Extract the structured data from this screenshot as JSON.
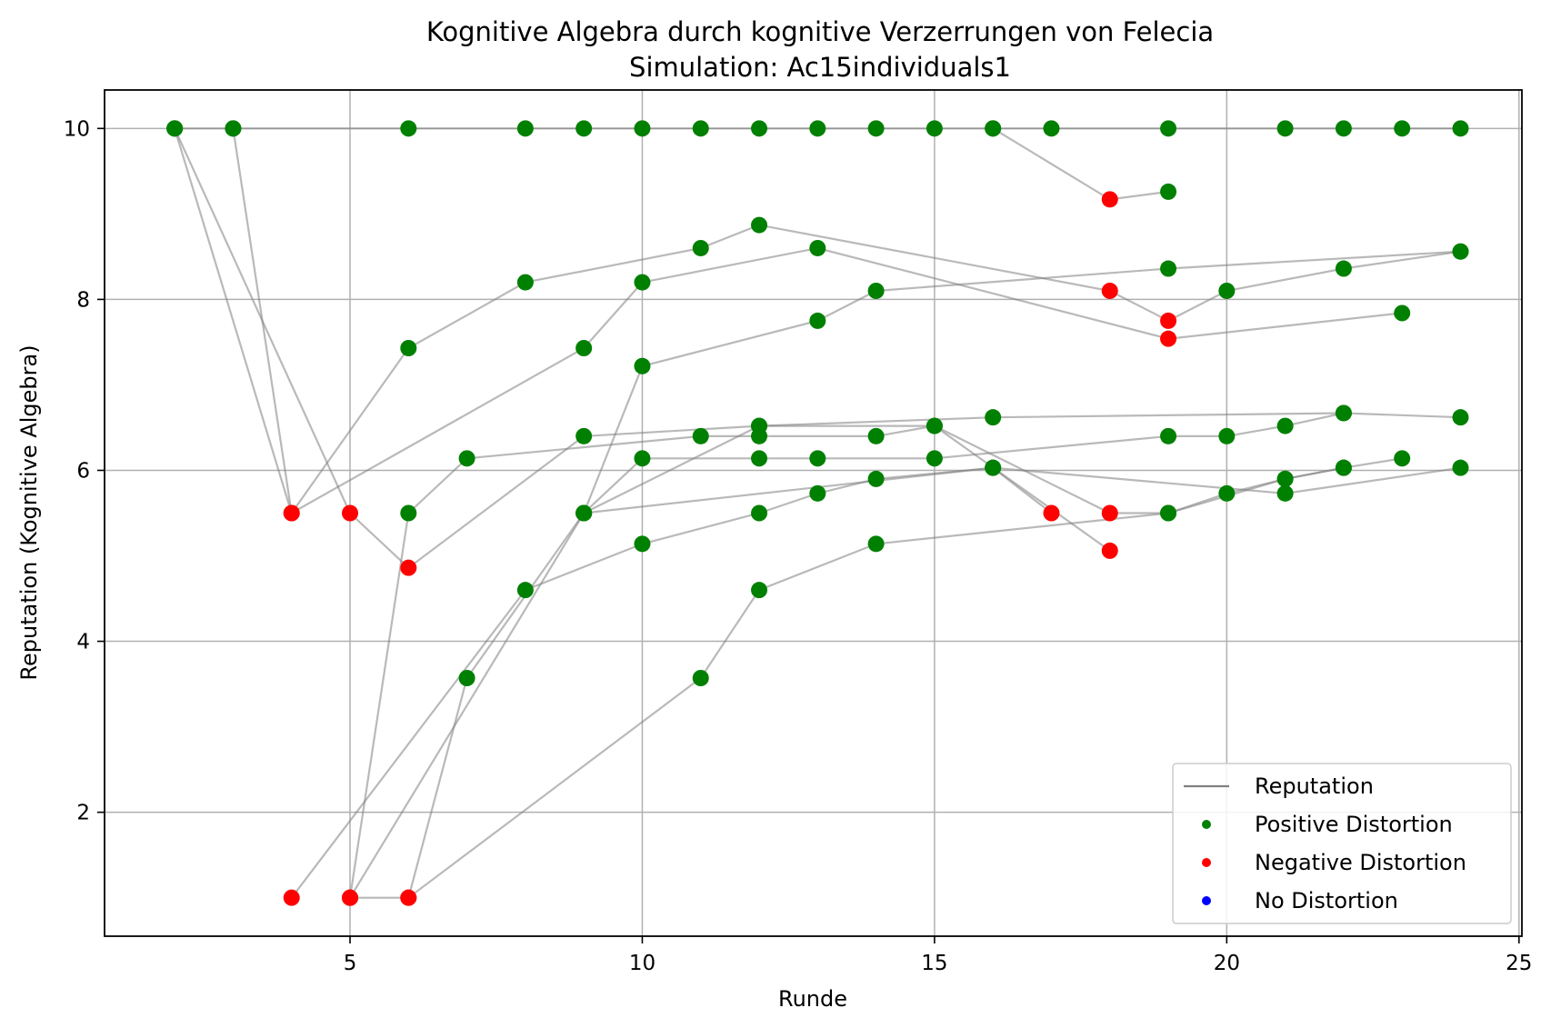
{
  "chart_data": {
    "type": "scatter",
    "title": "Kognitive Algebra durch kognitive Verzerrungen von Felecia",
    "subtitle": "Simulation: Ac15individuals1",
    "xlabel": "Runde",
    "ylabel": "Reputation (Kognitive Algebra)",
    "xlim": [
      0.8,
      25.05
    ],
    "ylim": [
      0.55,
      10.45
    ],
    "xticks": [
      5,
      10,
      15,
      20,
      25
    ],
    "yticks": [
      2,
      4,
      6,
      8,
      10
    ],
    "grid": true,
    "legend_position": "lower-right",
    "legend": [
      {
        "label": "Reputation",
        "kind": "line",
        "color": "#808080"
      },
      {
        "label": "Positive Distortion",
        "kind": "marker",
        "color": "#008000"
      },
      {
        "label": "Negative Distortion",
        "kind": "marker",
        "color": "#ff0000"
      },
      {
        "label": "No Distortion",
        "kind": "marker",
        "color": "#0000ff"
      }
    ],
    "colors": {
      "positive": "#008000",
      "negative": "#ff0000",
      "none": "#0000ff",
      "line": "#808080"
    },
    "series": [
      {
        "points": [
          [
            2,
            10
          ],
          [
            3,
            10
          ],
          [
            6,
            10
          ],
          [
            8,
            10
          ],
          [
            9,
            10
          ],
          [
            10,
            10
          ],
          [
            11,
            10
          ],
          [
            12,
            10
          ],
          [
            13,
            10
          ],
          [
            14,
            10
          ],
          [
            15,
            10
          ],
          [
            16,
            10
          ],
          [
            17,
            10
          ],
          [
            19,
            10
          ],
          [
            21,
            10
          ],
          [
            22,
            10
          ],
          [
            23,
            10
          ],
          [
            24,
            10
          ]
        ],
        "distortion": [
          "p",
          "p",
          "p",
          "p",
          "p",
          "p",
          "p",
          "p",
          "p",
          "p",
          "p",
          "p",
          "p",
          "p",
          "p",
          "p",
          "p",
          "p"
        ]
      },
      {
        "points": [
          [
            2,
            10
          ],
          [
            4,
            5.5
          ],
          [
            6,
            7.43
          ],
          [
            8,
            8.2
          ],
          [
            11,
            8.6
          ],
          [
            12,
            8.87
          ],
          [
            18,
            8.1
          ],
          [
            19,
            7.75
          ],
          [
            20,
            8.1
          ],
          [
            22,
            8.36
          ],
          [
            24,
            8.56
          ]
        ],
        "distortion": [
          "p",
          "n",
          "p",
          "p",
          "p",
          "p",
          "n",
          "n",
          "p",
          "p",
          "p"
        ]
      },
      {
        "points": [
          [
            2,
            10
          ],
          [
            5,
            5.5
          ],
          [
            6,
            4.86
          ],
          [
            9,
            6.4
          ],
          [
            12,
            6.52
          ],
          [
            15,
            6.52
          ],
          [
            18,
            5.5
          ],
          [
            19,
            5.5
          ],
          [
            21,
            5.9
          ],
          [
            22,
            6.03
          ],
          [
            23,
            6.14
          ]
        ],
        "distortion": [
          "p",
          "n",
          "n",
          "p",
          "p",
          "p",
          "n",
          "p",
          "p",
          "p",
          "p"
        ]
      },
      {
        "points": [
          [
            3,
            10
          ],
          [
            4,
            5.5
          ],
          [
            9,
            7.43
          ],
          [
            10,
            8.2
          ],
          [
            13,
            8.6
          ],
          [
            19,
            7.54
          ],
          [
            23,
            7.84
          ]
        ],
        "distortion": [
          "p",
          "n",
          "p",
          "p",
          "p",
          "n",
          "p"
        ]
      },
      {
        "points": [
          [
            4,
            1
          ],
          [
            8,
            4.6
          ],
          [
            10,
            5.14
          ],
          [
            12,
            5.5
          ],
          [
            13,
            5.73
          ],
          [
            14,
            5.9
          ],
          [
            16,
            6.03
          ],
          [
            17,
            5.5
          ]
        ],
        "distortion": [
          "n",
          "p",
          "p",
          "p",
          "p",
          "p",
          "p",
          "n"
        ]
      },
      {
        "points": [
          [
            5,
            1
          ],
          [
            6,
            1
          ],
          [
            11,
            3.57
          ],
          [
            12,
            4.6
          ],
          [
            14,
            5.14
          ],
          [
            19,
            5.5
          ],
          [
            20,
            5.73
          ],
          [
            21,
            5.9
          ],
          [
            22,
            6.03
          ]
        ],
        "distortion": [
          "n",
          "n",
          "p",
          "p",
          "p",
          "p",
          "p",
          "p",
          "p"
        ]
      },
      {
        "points": [
          [
            5,
            1
          ],
          [
            9,
            5.5
          ],
          [
            10,
            7.22
          ],
          [
            13,
            7.75
          ],
          [
            14,
            8.1
          ],
          [
            19,
            8.36
          ],
          [
            24,
            8.56
          ]
        ],
        "distortion": [
          "n",
          "p",
          "p",
          "p",
          "p",
          "p",
          "p"
        ]
      },
      {
        "points": [
          [
            5,
            1
          ],
          [
            6,
            5.5
          ],
          [
            7,
            6.14
          ],
          [
            11,
            6.4
          ],
          [
            12,
            6.4
          ],
          [
            14,
            6.4
          ],
          [
            15,
            6.52
          ],
          [
            18,
            5.06
          ]
        ],
        "distortion": [
          "n",
          "p",
          "p",
          "p",
          "p",
          "p",
          "p",
          "n"
        ]
      },
      {
        "points": [
          [
            6,
            1
          ],
          [
            7,
            3.57
          ],
          [
            9,
            5.5
          ],
          [
            10,
            6.14
          ],
          [
            12,
            6.14
          ],
          [
            13,
            6.14
          ],
          [
            15,
            6.14
          ],
          [
            19,
            6.4
          ],
          [
            20,
            6.4
          ],
          [
            21,
            6.52
          ],
          [
            22,
            6.67
          ],
          [
            24,
            6.62
          ]
        ],
        "distortion": [
          "n",
          "p",
          "p",
          "p",
          "p",
          "p",
          "p",
          "p",
          "p",
          "p",
          "p",
          "p"
        ]
      },
      {
        "points": [
          [
            9,
            5.5
          ],
          [
            12,
            6.52
          ],
          [
            16,
            6.62
          ],
          [
            22,
            6.67
          ]
        ],
        "distortion": [
          "p",
          "p",
          "p",
          "p"
        ]
      },
      {
        "points": [
          [
            9,
            5.5
          ],
          [
            16,
            6.03
          ],
          [
            21,
            5.73
          ],
          [
            24,
            6.03
          ]
        ],
        "distortion": [
          "p",
          "p",
          "p",
          "p"
        ]
      },
      {
        "points": [
          [
            16,
            10
          ],
          [
            18,
            9.17
          ],
          [
            19,
            9.26
          ]
        ],
        "distortion": [
          "p",
          "n",
          "p"
        ]
      }
    ]
  }
}
